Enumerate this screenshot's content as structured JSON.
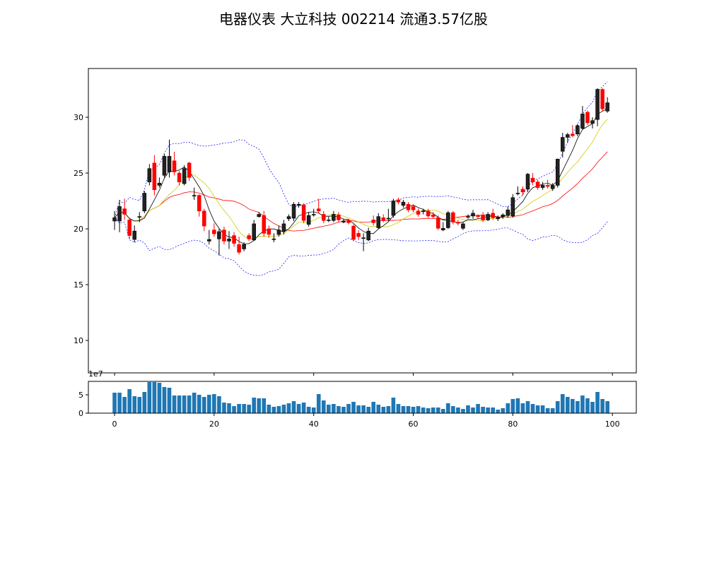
{
  "chart_data": {
    "type": "candlestick",
    "title": "电器仪表 大立科技 002214 流通3.57亿股",
    "colors": {
      "up": "#000000",
      "down": "#ff0000",
      "ma5": "#000000",
      "ma10": "#cccc00",
      "ma20": "#ff0000",
      "boll": "#0000ff",
      "volume": "#1f77b4"
    },
    "xlim": [
      -5.26,
      104.8
    ],
    "ylim": [
      7.09,
      34.37
    ],
    "volume_ylim": [
      0,
      8.65
    ],
    "x_ticks": [
      "0",
      "20",
      "40",
      "60",
      "80",
      "100"
    ],
    "x_tick_values": [
      0,
      20,
      40,
      60,
      80,
      100
    ],
    "y_ticks": [
      "10",
      "15",
      "20",
      "25",
      "30"
    ],
    "y_tick_values": [
      10,
      15,
      20,
      25,
      30
    ],
    "volume_ticks": [
      "0",
      "5"
    ],
    "volume_tick_values": [
      0,
      5
    ],
    "volume_offset_label": "1e7",
    "open": [
      20.7,
      20.7,
      21.8,
      20.8,
      19.05,
      21.1,
      21.6,
      24.2,
      25.9,
      23.9,
      24.8,
      25.1,
      26.1,
      25.0,
      24.05,
      25.9,
      23.0,
      23.0,
      21.6,
      18.9,
      19.9,
      19.1,
      19.9,
      18.9,
      19.4,
      18.6,
      18.2,
      19.4,
      19.0,
      21.1,
      21.2,
      20.0,
      19.1,
      19.5,
      19.8,
      20.9,
      20.95,
      22.1,
      22.15,
      20.4,
      21.3,
      21.8,
      21.3,
      20.8,
      20.75,
      21.25,
      20.6,
      20.75,
      20.25,
      19.6,
      19.2,
      19.0,
      20.8,
      20.1,
      21.0,
      20.95,
      21.2,
      22.6,
      22.1,
      22.2,
      22.0,
      21.6,
      21.6,
      21.6,
      21.25,
      21.0,
      19.9,
      20.1,
      21.45,
      20.6,
      20.05,
      21.1,
      21.15,
      21.2,
      21.25,
      20.8,
      21.4,
      20.9,
      21.1,
      21.2,
      21.15,
      23.2,
      23.55,
      23.55,
      24.55,
      24.2,
      23.7,
      23.9,
      23.6,
      23.9,
      26.95,
      28.2,
      28.5,
      28.5,
      29.0,
      30.45,
      29.45,
      29.8,
      32.5,
      30.55
    ],
    "close": [
      21.0,
      22.0,
      21.3,
      19.4,
      19.8,
      21.1,
      23.2,
      25.4,
      23.5,
      24.1,
      26.5,
      26.5,
      25.1,
      24.2,
      25.4,
      24.6,
      23.0,
      21.6,
      20.25,
      19.05,
      19.55,
      19.75,
      18.9,
      19.1,
      18.7,
      17.9,
      18.6,
      19.1,
      20.45,
      21.3,
      19.6,
      19.5,
      19.1,
      19.9,
      20.45,
      21.1,
      22.2,
      22.2,
      20.75,
      21.2,
      21.3,
      21.6,
      20.75,
      20.8,
      21.3,
      20.8,
      20.7,
      20.55,
      19.05,
      19.3,
      19.2,
      19.8,
      20.55,
      21.1,
      20.75,
      20.95,
      22.5,
      22.4,
      22.4,
      21.7,
      21.7,
      21.3,
      21.6,
      21.15,
      21.1,
      20.05,
      20.05,
      21.45,
      20.6,
      20.5,
      20.45,
      21.1,
      21.4,
      21.1,
      20.8,
      21.3,
      21.0,
      21.0,
      21.25,
      21.7,
      22.8,
      23.2,
      23.3,
      24.9,
      24.2,
      23.7,
      23.9,
      23.8,
      23.9,
      26.25,
      28.2,
      28.45,
      28.35,
      29.25,
      30.3,
      29.5,
      29.7,
      32.5,
      30.75,
      31.3
    ],
    "high": [
      21.6,
      22.6,
      22.7,
      21.0,
      20.3,
      21.5,
      23.4,
      25.8,
      26.6,
      24.6,
      26.7,
      28.0,
      26.9,
      25.2,
      25.7,
      26.0,
      23.7,
      23.1,
      21.8,
      19.9,
      20.5,
      20.0,
      20.2,
      19.8,
      19.7,
      19.3,
      18.8,
      19.6,
      20.8,
      21.5,
      21.6,
      20.3,
      19.6,
      20.3,
      20.8,
      21.3,
      22.4,
      22.4,
      22.3,
      21.5,
      21.8,
      22.7,
      21.6,
      21.1,
      21.6,
      21.5,
      20.9,
      20.9,
      20.4,
      19.9,
      19.6,
      20.1,
      21.2,
      21.4,
      21.3,
      21.8,
      22.7,
      22.8,
      22.6,
      22.4,
      22.2,
      21.8,
      21.8,
      21.8,
      21.5,
      21.2,
      20.6,
      21.6,
      21.6,
      20.8,
      20.6,
      21.3,
      21.7,
      21.3,
      21.5,
      21.5,
      21.8,
      21.2,
      21.4,
      22.0,
      23.1,
      23.8,
      23.8,
      25.0,
      25.0,
      24.4,
      24.2,
      24.4,
      24.1,
      26.3,
      28.6,
      28.6,
      29.3,
      29.4,
      31.0,
      30.6,
      30.0,
      32.6,
      32.6,
      31.8
    ],
    "low": [
      19.9,
      19.7,
      20.8,
      19.1,
      18.8,
      20.6,
      21.4,
      23.9,
      23.0,
      23.7,
      24.6,
      24.6,
      24.8,
      23.9,
      23.9,
      24.3,
      22.6,
      21.1,
      19.8,
      18.6,
      19.3,
      17.6,
      18.6,
      18.2,
      18.4,
      17.7,
      18.0,
      18.9,
      18.9,
      21.0,
      19.3,
      19.2,
      18.8,
      19.3,
      19.5,
      20.7,
      20.7,
      21.9,
      20.5,
      20.2,
      21.1,
      21.4,
      20.5,
      20.6,
      20.6,
      20.6,
      20.5,
      20.4,
      18.9,
      19.0,
      18.0,
      18.9,
      20.3,
      20.0,
      20.6,
      20.7,
      21.0,
      22.2,
      21.9,
      21.5,
      21.5,
      21.1,
      21.3,
      21.0,
      20.9,
      19.9,
      19.8,
      20.0,
      20.4,
      20.3,
      19.9,
      20.9,
      20.9,
      20.9,
      20.6,
      20.7,
      20.8,
      20.7,
      20.9,
      21.0,
      21.0,
      23.0,
      23.0,
      23.3,
      23.9,
      23.5,
      23.5,
      23.6,
      23.4,
      23.7,
      26.4,
      27.7,
      28.2,
      28.3,
      28.9,
      29.3,
      29.0,
      29.2,
      30.5,
      30.4
    ],
    "volume": [
      5.58,
      5.58,
      4.42,
      6.54,
      4.62,
      4.42,
      5.77,
      8.46,
      8.46,
      8.27,
      7.12,
      6.92,
      4.81,
      4.81,
      4.81,
      4.81,
      5.58,
      5.0,
      4.42,
      5.0,
      5.19,
      4.62,
      2.88,
      2.69,
      1.92,
      2.5,
      2.5,
      2.31,
      4.23,
      4.04,
      4.04,
      2.31,
      1.73,
      1.92,
      2.31,
      2.69,
      3.27,
      2.5,
      2.88,
      1.73,
      1.54,
      5.19,
      3.46,
      2.31,
      2.5,
      1.92,
      1.73,
      2.5,
      3.08,
      2.12,
      2.12,
      1.73,
      3.08,
      2.31,
      1.73,
      1.92,
      4.23,
      2.5,
      1.92,
      1.92,
      1.73,
      1.92,
      1.54,
      1.35,
      1.54,
      1.54,
      1.15,
      2.69,
      1.92,
      1.54,
      1.15,
      2.12,
      1.54,
      2.5,
      1.73,
      1.54,
      1.54,
      0.96,
      1.35,
      2.69,
      3.85,
      4.04,
      2.69,
      3.27,
      2.5,
      2.12,
      2.12,
      1.35,
      1.35,
      3.27,
      5.19,
      4.42,
      3.85,
      3.27,
      4.81,
      4.04,
      3.08,
      5.77,
      3.85,
      3.27
    ],
    "ma_periods": [
      5,
      10,
      20
    ],
    "boll": {
      "period": 20,
      "k": 2
    }
  }
}
